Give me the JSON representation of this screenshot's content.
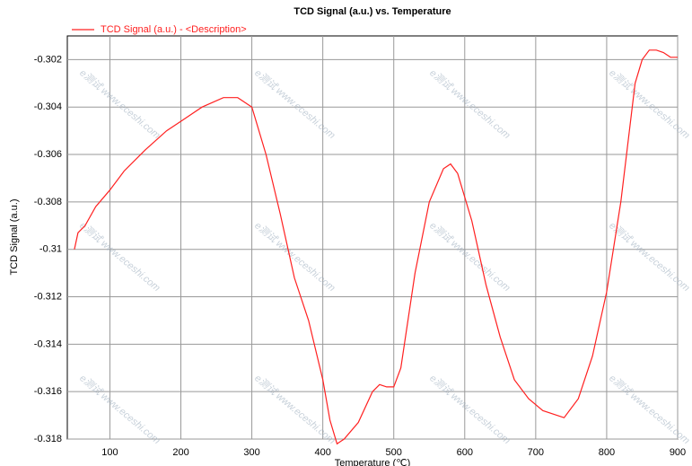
{
  "chart_data": {
    "type": "line",
    "title": "TCD Signal (a.u.) vs. Temperature",
    "xlabel": "Temperature (℃)",
    "ylabel": "TCD Signal (a.u.)",
    "watermark": "e测试 www.eceshi.com",
    "xlim": [
      40,
      900
    ],
    "ylim": [
      -0.318,
      -0.301
    ],
    "xticks": [
      100,
      200,
      300,
      400,
      500,
      600,
      700,
      800,
      900
    ],
    "yticks": [
      -0.318,
      -0.316,
      -0.314,
      -0.312,
      -0.31,
      -0.308,
      -0.306,
      -0.304,
      -0.302
    ],
    "grid": true,
    "legend": "top-left",
    "x": [
      50,
      55,
      65,
      80,
      100,
      120,
      150,
      180,
      200,
      230,
      260,
      280,
      300,
      320,
      340,
      360,
      380,
      400,
      410,
      420,
      430,
      450,
      470,
      480,
      490,
      500,
      510,
      530,
      550,
      570,
      580,
      590,
      610,
      630,
      650,
      670,
      690,
      710,
      740,
      760,
      780,
      800,
      820,
      840,
      850,
      860,
      870,
      880,
      890,
      900
    ],
    "series": [
      {
        "name": "TCD Signal (a.u.) - <Description>",
        "color": "#ff2020",
        "values": [
          -0.31,
          -0.3093,
          -0.309,
          -0.3082,
          -0.3075,
          -0.3067,
          -0.3058,
          -0.305,
          -0.3046,
          -0.304,
          -0.3036,
          -0.3036,
          -0.304,
          -0.306,
          -0.3085,
          -0.3112,
          -0.313,
          -0.3155,
          -0.3172,
          -0.3182,
          -0.318,
          -0.3173,
          -0.316,
          -0.3157,
          -0.3158,
          -0.3158,
          -0.315,
          -0.311,
          -0.308,
          -0.3066,
          -0.3064,
          -0.3068,
          -0.3088,
          -0.3115,
          -0.3137,
          -0.3155,
          -0.3163,
          -0.3168,
          -0.3171,
          -0.3163,
          -0.3145,
          -0.3118,
          -0.308,
          -0.303,
          -0.302,
          -0.3016,
          -0.3016,
          -0.3017,
          -0.3019,
          -0.3019
        ]
      }
    ]
  }
}
